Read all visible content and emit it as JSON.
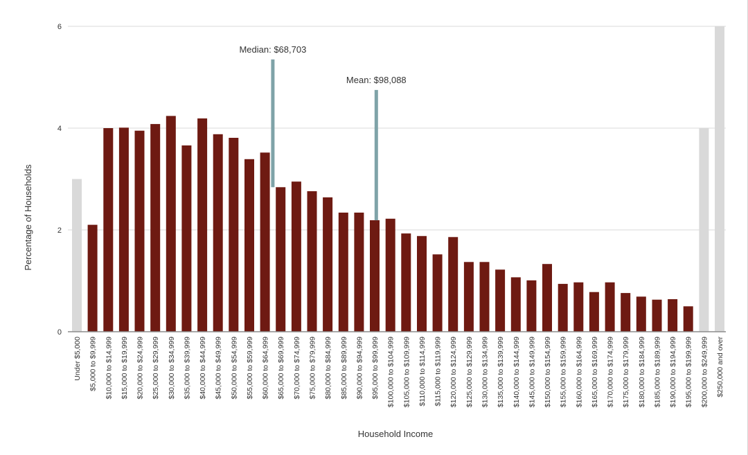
{
  "chart_data": {
    "type": "bar",
    "title": "",
    "xlabel": "Household Income",
    "ylabel": "Percentage of Households",
    "ylim": [
      0,
      6
    ],
    "yticks": [
      0,
      2,
      4,
      6
    ],
    "grid": true,
    "legend": null,
    "categories": [
      "Under $5,000",
      "$5,000 to $9,999",
      "$10,000 to $14,999",
      "$15,000 to $19,999",
      "$20,000 to $24,999",
      "$25,000 to $29,999",
      "$30,000 to $34,999",
      "$35,000 to $39,999",
      "$40,000 to $44,999",
      "$45,000 to $49,999",
      "$50,000 to $54,999",
      "$55,000 to $59,999",
      "$60,000 to $64,999",
      "$65,000 to $69,999",
      "$70,000 to $74,999",
      "$75,000 to $79,999",
      "$80,000 to $84,999",
      "$85,000 to $89,999",
      "$90,000 to $94,999",
      "$95,000 to $99,999",
      "$100,000 to $104,999",
      "$105,000 to $109,999",
      "$110,000 to $114,999",
      "$115,000 to $119,999",
      "$120,000 to $124,999",
      "$125,000 to $129,999",
      "$130,000 to $134,999",
      "$135,000 to $139,999",
      "$140,000 to $144,999",
      "$145,000 to $149,999",
      "$150,000 to $154,999",
      "$155,000 to $159,999",
      "$160,000 to $164,999",
      "$165,000 to $169,999",
      "$170,000 to $174,999",
      "$175,000 to $179,999",
      "$180,000 to $184,999",
      "$185,000 to $189,999",
      "$190,000 to $194,999",
      "$195,000 to $199,999",
      "$200,000 to $249,999",
      "$250,000 and over"
    ],
    "values": [
      3.0,
      2.1,
      4.0,
      4.01,
      3.95,
      4.08,
      4.24,
      3.66,
      4.19,
      3.88,
      3.81,
      3.39,
      3.52,
      2.84,
      2.95,
      2.76,
      2.64,
      2.34,
      2.34,
      2.19,
      2.22,
      1.93,
      1.88,
      1.52,
      1.86,
      1.37,
      1.37,
      1.22,
      1.07,
      1.01,
      1.33,
      0.94,
      0.97,
      0.78,
      0.97,
      0.76,
      0.69,
      0.63,
      0.64,
      0.5,
      4.0,
      6.0
    ],
    "bar_styles": [
      "muted",
      "main",
      "main",
      "main",
      "main",
      "main",
      "main",
      "main",
      "main",
      "main",
      "main",
      "main",
      "main",
      "main",
      "main",
      "main",
      "main",
      "main",
      "main",
      "main",
      "main",
      "main",
      "main",
      "main",
      "main",
      "main",
      "main",
      "main",
      "main",
      "main",
      "main",
      "main",
      "main",
      "main",
      "main",
      "main",
      "main",
      "main",
      "main",
      "main",
      "muted",
      "muted"
    ],
    "annotations": [
      {
        "label": "Median: $68,703",
        "category_index": 13,
        "top_value": 5.35,
        "offset": -0.5
      },
      {
        "label": "Mean: $98,088",
        "category_index": 19,
        "top_value": 4.75,
        "offset": 0.1
      }
    ],
    "colors": {
      "main": "#6e1a12",
      "muted": "#d9d9d9",
      "marker": "#7fa3a8",
      "grid": "#d9d9d9",
      "axis": "#8c8c8c",
      "text": "#333333"
    }
  }
}
